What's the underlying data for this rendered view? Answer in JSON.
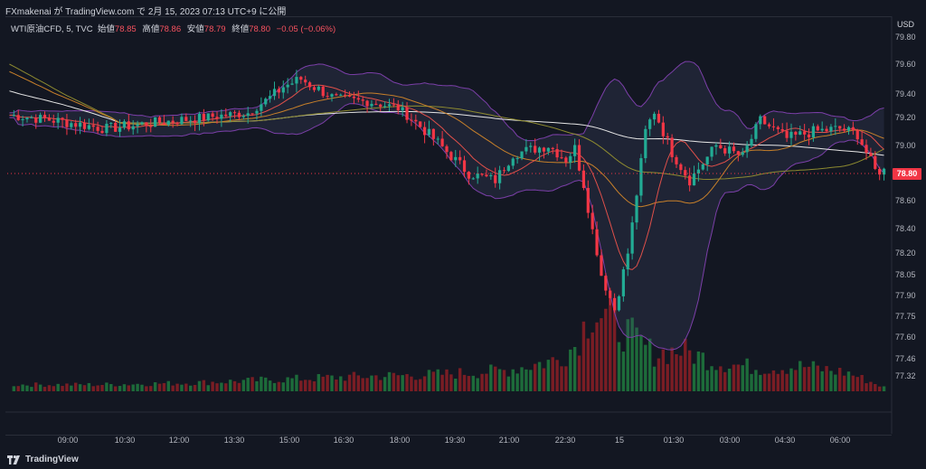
{
  "header": {
    "publisher_line": "FXmakenai が TradingView.com で 2月 15, 2023 07:13 UTC+9 に公開"
  },
  "legend": {
    "symbol": "WTI原油CFD, 5, TVC",
    "open_label": "始値",
    "open_value": "78.85",
    "high_label": "高値",
    "high_value": "78.86",
    "low_label": "安値",
    "low_value": "78.79",
    "close_label": "終値",
    "close_value": "78.80",
    "change": "−0.05 (−0.06%)"
  },
  "axis": {
    "currency": "USD",
    "last_price_label": "78.80"
  },
  "brand": {
    "name": "TradingView",
    "icon": "tradingview-logo-icon"
  },
  "colors": {
    "background": "#131722",
    "up": "#22ab94",
    "down": "#f23645",
    "volume_up": "#1d6b3a",
    "volume_down": "#7a1d24",
    "bollinger": "#7b3fa8",
    "ma_white": "#e6e6e6",
    "ma_orange": "#c8802a",
    "ma_red": "#e0504a",
    "ma_olive": "#8d8a30"
  },
  "chart_data": {
    "type": "candlestick",
    "y_ticks": [
      79.8,
      79.6,
      79.4,
      79.2,
      79.0,
      78.8,
      78.6,
      78.4,
      78.2,
      78.05,
      77.9,
      77.75,
      77.6,
      77.46,
      77.32
    ],
    "x_ticks": [
      "09:00",
      "10:30",
      "12:00",
      "13:30",
      "15:00",
      "16:30",
      "18:00",
      "19:30",
      "21:00",
      "22:30",
      "15",
      "01:30",
      "03:00",
      "04:30",
      "06:00"
    ],
    "last_price": 78.8,
    "price_anchors": [
      [
        0,
        79.22
      ],
      [
        10,
        79.18
      ],
      [
        22,
        79.12
      ],
      [
        32,
        79.16
      ],
      [
        44,
        79.2
      ],
      [
        54,
        79.24
      ],
      [
        62,
        79.45
      ],
      [
        66,
        79.5
      ],
      [
        74,
        79.36
      ],
      [
        82,
        79.33
      ],
      [
        88,
        79.28
      ],
      [
        96,
        79.05
      ],
      [
        104,
        78.8
      ],
      [
        110,
        78.75
      ],
      [
        114,
        78.94
      ],
      [
        122,
        79.0
      ],
      [
        126,
        78.9
      ],
      [
        128,
        78.98
      ],
      [
        130,
        78.72
      ],
      [
        134,
        78.05
      ],
      [
        137,
        77.8
      ],
      [
        140,
        78.2
      ],
      [
        144,
        79.1
      ],
      [
        146,
        79.25
      ],
      [
        150,
        78.95
      ],
      [
        154,
        78.75
      ],
      [
        160,
        79.0
      ],
      [
        166,
        78.92
      ],
      [
        170,
        79.18
      ],
      [
        176,
        79.05
      ],
      [
        182,
        79.1
      ],
      [
        188,
        79.12
      ],
      [
        192,
        79.08
      ],
      [
        196,
        78.82
      ]
    ],
    "volume_profile": [
      [
        0,
        0.08
      ],
      [
        20,
        0.08
      ],
      [
        40,
        0.1
      ],
      [
        60,
        0.14
      ],
      [
        80,
        0.18
      ],
      [
        96,
        0.2
      ],
      [
        112,
        0.25
      ],
      [
        124,
        0.38
      ],
      [
        128,
        0.55
      ],
      [
        132,
        1.0
      ],
      [
        136,
        0.85
      ],
      [
        140,
        0.7
      ],
      [
        146,
        0.45
      ],
      [
        152,
        0.5
      ],
      [
        160,
        0.35
      ],
      [
        170,
        0.28
      ],
      [
        180,
        0.3
      ],
      [
        190,
        0.22
      ],
      [
        198,
        0.05
      ]
    ]
  }
}
